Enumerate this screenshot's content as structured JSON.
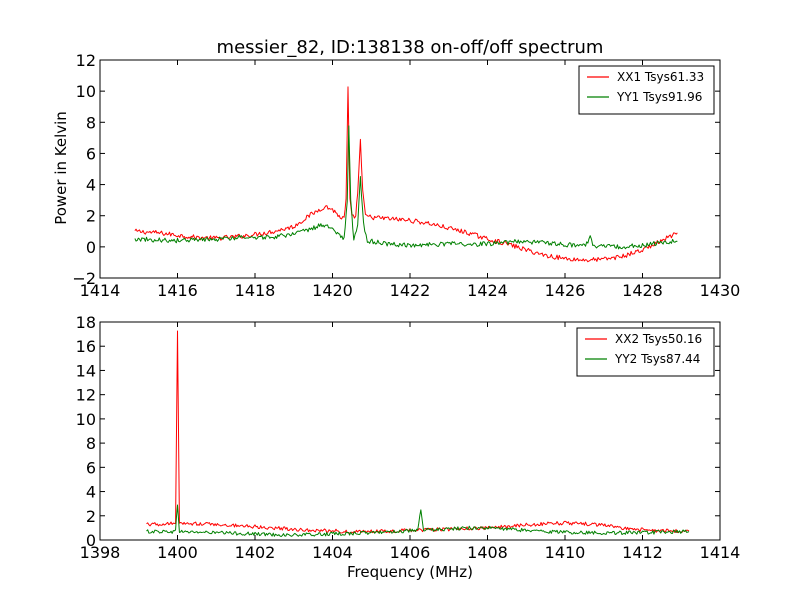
{
  "chart_data": [
    {
      "type": "line",
      "title": "messier_82, ID:138138 on-off/off spectrum",
      "xlabel": "",
      "ylabel": "Power in Kelvin",
      "xlim": [
        1414,
        1430
      ],
      "ylim": [
        -2,
        12
      ],
      "xticks": [
        1414,
        1416,
        1418,
        1420,
        1422,
        1424,
        1426,
        1428,
        1430
      ],
      "yticks": [
        -2,
        0,
        2,
        4,
        6,
        8,
        10,
        12
      ],
      "xtick_labels": [
        "1414",
        "1416",
        "1418",
        "1420",
        "1422",
        "1424",
        "1426",
        "1428",
        "1430"
      ],
      "ytick_labels": [
        "−2",
        "0",
        "2",
        "4",
        "6",
        "8",
        "10",
        "12"
      ],
      "legend_position": "top-right",
      "grid": false,
      "series": [
        {
          "name": "XX1 Tsys61.33",
          "color": "#ff0000",
          "points": [
            [
              1414.9,
              1.0
            ],
            [
              1415.5,
              0.9
            ],
            [
              1416.0,
              0.75
            ],
            [
              1416.5,
              0.6
            ],
            [
              1417.0,
              0.55
            ],
            [
              1417.5,
              0.65
            ],
            [
              1418.0,
              0.8
            ],
            [
              1418.5,
              1.0
            ],
            [
              1419.0,
              1.3
            ],
            [
              1419.4,
              2.0
            ],
            [
              1419.8,
              2.6
            ],
            [
              1420.0,
              2.4
            ],
            [
              1420.2,
              1.9
            ],
            [
              1420.3,
              1.8
            ],
            [
              1420.35,
              3.0
            ],
            [
              1420.4,
              10.2
            ],
            [
              1420.45,
              3.0
            ],
            [
              1420.5,
              1.9
            ],
            [
              1420.6,
              2.0
            ],
            [
              1420.65,
              3.5
            ],
            [
              1420.72,
              6.8
            ],
            [
              1420.78,
              3.5
            ],
            [
              1420.85,
              2.0
            ],
            [
              1421.0,
              1.9
            ],
            [
              1421.5,
              1.8
            ],
            [
              1422.0,
              1.7
            ],
            [
              1422.5,
              1.5
            ],
            [
              1423.0,
              1.2
            ],
            [
              1423.5,
              0.9
            ],
            [
              1424.0,
              0.5
            ],
            [
              1424.5,
              0.2
            ],
            [
              1425.0,
              -0.2
            ],
            [
              1425.5,
              -0.55
            ],
            [
              1426.0,
              -0.75
            ],
            [
              1426.5,
              -0.85
            ],
            [
              1427.0,
              -0.8
            ],
            [
              1427.5,
              -0.6
            ],
            [
              1428.0,
              -0.2
            ],
            [
              1428.5,
              0.4
            ],
            [
              1428.9,
              0.9
            ]
          ]
        },
        {
          "name": "YY1 Tsys91.96",
          "color": "#008000",
          "points": [
            [
              1414.9,
              0.5
            ],
            [
              1415.5,
              0.45
            ],
            [
              1416.0,
              0.4
            ],
            [
              1416.5,
              0.45
            ],
            [
              1417.0,
              0.5
            ],
            [
              1417.5,
              0.6
            ],
            [
              1418.0,
              0.6
            ],
            [
              1418.5,
              0.65
            ],
            [
              1419.0,
              0.8
            ],
            [
              1419.4,
              1.1
            ],
            [
              1419.7,
              1.4
            ],
            [
              1419.9,
              1.3
            ],
            [
              1420.1,
              0.9
            ],
            [
              1420.3,
              0.5
            ],
            [
              1420.38,
              3.0
            ],
            [
              1420.42,
              7.9
            ],
            [
              1420.47,
              3.0
            ],
            [
              1420.55,
              0.3
            ],
            [
              1420.65,
              1.5
            ],
            [
              1420.72,
              4.5
            ],
            [
              1420.8,
              1.5
            ],
            [
              1420.9,
              0.4
            ],
            [
              1421.5,
              0.15
            ],
            [
              1422.0,
              0.1
            ],
            [
              1422.5,
              0.15
            ],
            [
              1423.0,
              0.2
            ],
            [
              1423.5,
              0.15
            ],
            [
              1424.0,
              0.2
            ],
            [
              1424.5,
              0.3
            ],
            [
              1425.0,
              0.35
            ],
            [
              1425.5,
              0.25
            ],
            [
              1426.0,
              0.15
            ],
            [
              1426.5,
              0.05
            ],
            [
              1426.65,
              0.6
            ],
            [
              1426.75,
              0.05
            ],
            [
              1427.0,
              0.0
            ],
            [
              1427.5,
              0.0
            ],
            [
              1428.0,
              0.1
            ],
            [
              1428.5,
              0.3
            ],
            [
              1428.9,
              0.35
            ]
          ]
        }
      ]
    },
    {
      "type": "line",
      "title": "",
      "xlabel": "Frequency (MHz)",
      "ylabel": "",
      "xlim": [
        1398,
        1414
      ],
      "ylim": [
        0,
        18
      ],
      "xticks": [
        1398,
        1400,
        1402,
        1404,
        1406,
        1408,
        1410,
        1412,
        1414
      ],
      "yticks": [
        0,
        2,
        4,
        6,
        8,
        10,
        12,
        14,
        16,
        18
      ],
      "xtick_labels": [
        "1398",
        "1400",
        "1402",
        "1404",
        "1406",
        "1408",
        "1410",
        "1412",
        "1414"
      ],
      "ytick_labels": [
        "0",
        "2",
        "4",
        "6",
        "8",
        "10",
        "12",
        "14",
        "16",
        "18"
      ],
      "legend_position": "top-right",
      "grid": false,
      "series": [
        {
          "name": "XX2 Tsys50.16",
          "color": "#ff0000",
          "points": [
            [
              1399.2,
              1.3
            ],
            [
              1399.6,
              1.3
            ],
            [
              1399.95,
              1.35
            ],
            [
              1400.0,
              17.3
            ],
            [
              1400.05,
              1.35
            ],
            [
              1400.5,
              1.35
            ],
            [
              1401.0,
              1.3
            ],
            [
              1401.5,
              1.2
            ],
            [
              1402.0,
              1.1
            ],
            [
              1402.5,
              1.0
            ],
            [
              1403.0,
              0.9
            ],
            [
              1403.5,
              0.8
            ],
            [
              1404.0,
              0.75
            ],
            [
              1404.5,
              0.7
            ],
            [
              1405.0,
              0.7
            ],
            [
              1405.5,
              0.75
            ],
            [
              1406.0,
              0.8
            ],
            [
              1406.5,
              0.85
            ],
            [
              1407.0,
              0.9
            ],
            [
              1407.5,
              0.95
            ],
            [
              1408.0,
              1.0
            ],
            [
              1408.5,
              1.1
            ],
            [
              1409.0,
              1.25
            ],
            [
              1409.5,
              1.35
            ],
            [
              1410.0,
              1.4
            ],
            [
              1410.5,
              1.35
            ],
            [
              1411.0,
              1.2
            ],
            [
              1411.5,
              1.0
            ],
            [
              1412.0,
              0.85
            ],
            [
              1412.5,
              0.75
            ],
            [
              1413.2,
              0.75
            ]
          ]
        },
        {
          "name": "YY2 Tsys87.44",
          "color": "#008000",
          "points": [
            [
              1399.2,
              0.7
            ],
            [
              1399.6,
              0.7
            ],
            [
              1399.95,
              0.7
            ],
            [
              1400.0,
              3.0
            ],
            [
              1400.05,
              0.7
            ],
            [
              1400.5,
              0.65
            ],
            [
              1401.0,
              0.6
            ],
            [
              1401.5,
              0.55
            ],
            [
              1402.0,
              0.5
            ],
            [
              1402.5,
              0.45
            ],
            [
              1403.0,
              0.4
            ],
            [
              1403.5,
              0.45
            ],
            [
              1404.0,
              0.5
            ],
            [
              1404.5,
              0.55
            ],
            [
              1405.0,
              0.6
            ],
            [
              1405.5,
              0.7
            ],
            [
              1406.0,
              0.75
            ],
            [
              1406.2,
              0.75
            ],
            [
              1406.28,
              2.5
            ],
            [
              1406.35,
              0.8
            ],
            [
              1406.6,
              0.85
            ],
            [
              1407.0,
              0.9
            ],
            [
              1407.5,
              1.0
            ],
            [
              1408.0,
              1.0
            ],
            [
              1408.5,
              0.9
            ],
            [
              1409.0,
              0.8
            ],
            [
              1409.5,
              0.7
            ],
            [
              1410.0,
              0.65
            ],
            [
              1410.5,
              0.6
            ],
            [
              1411.0,
              0.6
            ],
            [
              1411.5,
              0.6
            ],
            [
              1412.0,
              0.6
            ],
            [
              1412.5,
              0.65
            ],
            [
              1413.2,
              0.7
            ]
          ]
        }
      ]
    }
  ]
}
